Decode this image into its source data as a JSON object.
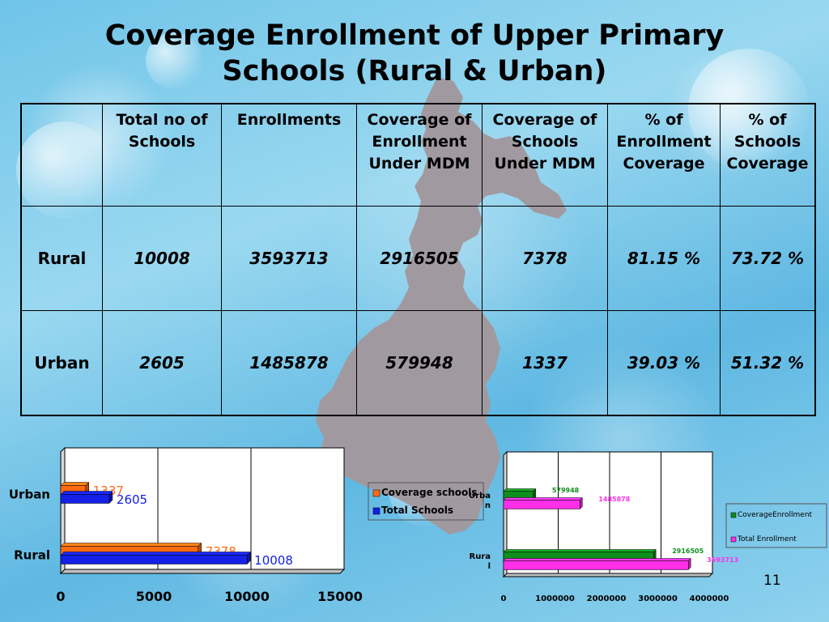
{
  "title_line1": "Coverage Enrollment of Upper Primary",
  "title_line2": "Schools (Rural & Urban)",
  "table": {
    "headers": [
      "",
      "Total no of Schools",
      "Enrollments",
      "Coverage of Enrollment Under MDM",
      "Coverage of Schools Under MDM",
      "% of Enrollment Coverage",
      "% of Schools Coverage"
    ],
    "rows": [
      {
        "label": "Rural",
        "total_schools": "10008",
        "enrollments": "3593713",
        "coverage_enrollment": "2916505",
        "coverage_schools": "7378",
        "pct_enrollment": "81.15 %",
        "pct_schools": "73.72 %"
      },
      {
        "label": "Urban",
        "total_schools": "2605",
        "enrollments": "1485878",
        "coverage_enrollment": "579948",
        "coverage_schools": "1337",
        "pct_enrollment": "39.03 %",
        "pct_schools": "51.32 %"
      }
    ]
  },
  "page_number": "11",
  "colors": {
    "orange": "#ff6a13",
    "blue": "#1420e6",
    "green": "#0f8f1c",
    "magenta": "#ff2fe8",
    "map": "#a09aa0"
  },
  "chart_data": [
    {
      "type": "bar",
      "orientation": "horizontal",
      "categories": [
        "Urban",
        "Rural"
      ],
      "series": [
        {
          "name": "Coverage schools",
          "values": [
            1337,
            7378
          ],
          "color": "#ff6a13"
        },
        {
          "name": "Total Schools",
          "values": [
            2605,
            10008
          ],
          "color": "#1420e6"
        }
      ],
      "xlim": [
        0,
        15000
      ],
      "xticks": [
        "0",
        "5000",
        "10000",
        "15000"
      ],
      "grid": true,
      "legend": "right"
    },
    {
      "type": "bar",
      "orientation": "horizontal",
      "categories": [
        "Urba\nn",
        "Rura\nl"
      ],
      "series": [
        {
          "name": "CoverageEnrollment",
          "values": [
            579948,
            2916505
          ],
          "color": "#0f8f1c"
        },
        {
          "name": "Total Enrollment",
          "values": [
            1485878,
            3593713
          ],
          "color": "#ff2fe8"
        }
      ],
      "xlim": [
        0,
        4000000
      ],
      "xticks": [
        "0",
        "1000000",
        "2000000",
        "3000000",
        "4000000"
      ],
      "grid": true,
      "legend": "right"
    }
  ]
}
